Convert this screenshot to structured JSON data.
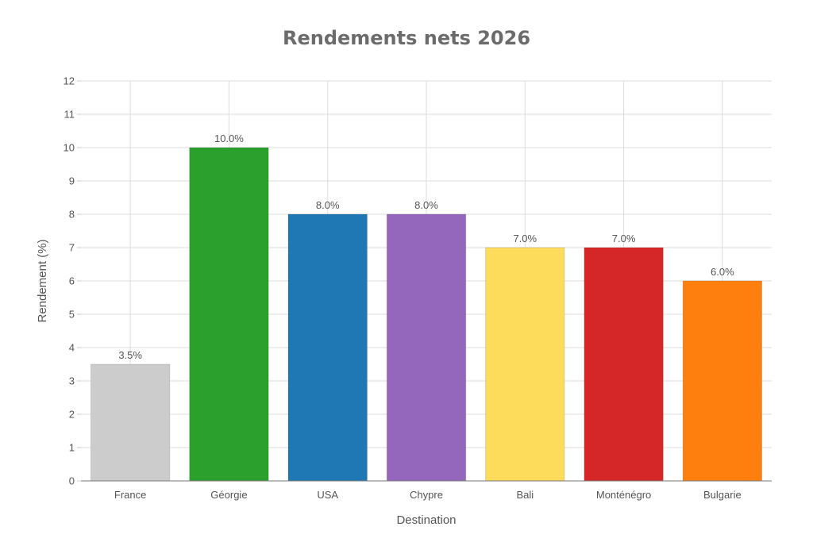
{
  "chart_data": {
    "type": "bar",
    "title": "Rendements nets 2026",
    "xlabel": "Destination",
    "ylabel": "Rendement (%)",
    "categories": [
      "France",
      "Géorgie",
      "USA",
      "Chypre",
      "Bali",
      "Monténégro",
      "Bulgarie"
    ],
    "values": [
      3.5,
      10.0,
      8.0,
      8.0,
      7.0,
      7.0,
      6.0
    ],
    "data_labels": [
      "3.5%",
      "10.0%",
      "8.0%",
      "8.0%",
      "7.0%",
      "7.0%",
      "6.0%"
    ],
    "colors": [
      "#cccccc",
      "#2ca02c",
      "#1f77b4",
      "#9467bd",
      "#fddc5c",
      "#d62728",
      "#ff7f0e"
    ],
    "ylim": [
      0,
      12
    ],
    "yticks": [
      0,
      1,
      2,
      3,
      4,
      5,
      6,
      7,
      8,
      9,
      10,
      11,
      12
    ],
    "grid": true,
    "legend": "none"
  }
}
